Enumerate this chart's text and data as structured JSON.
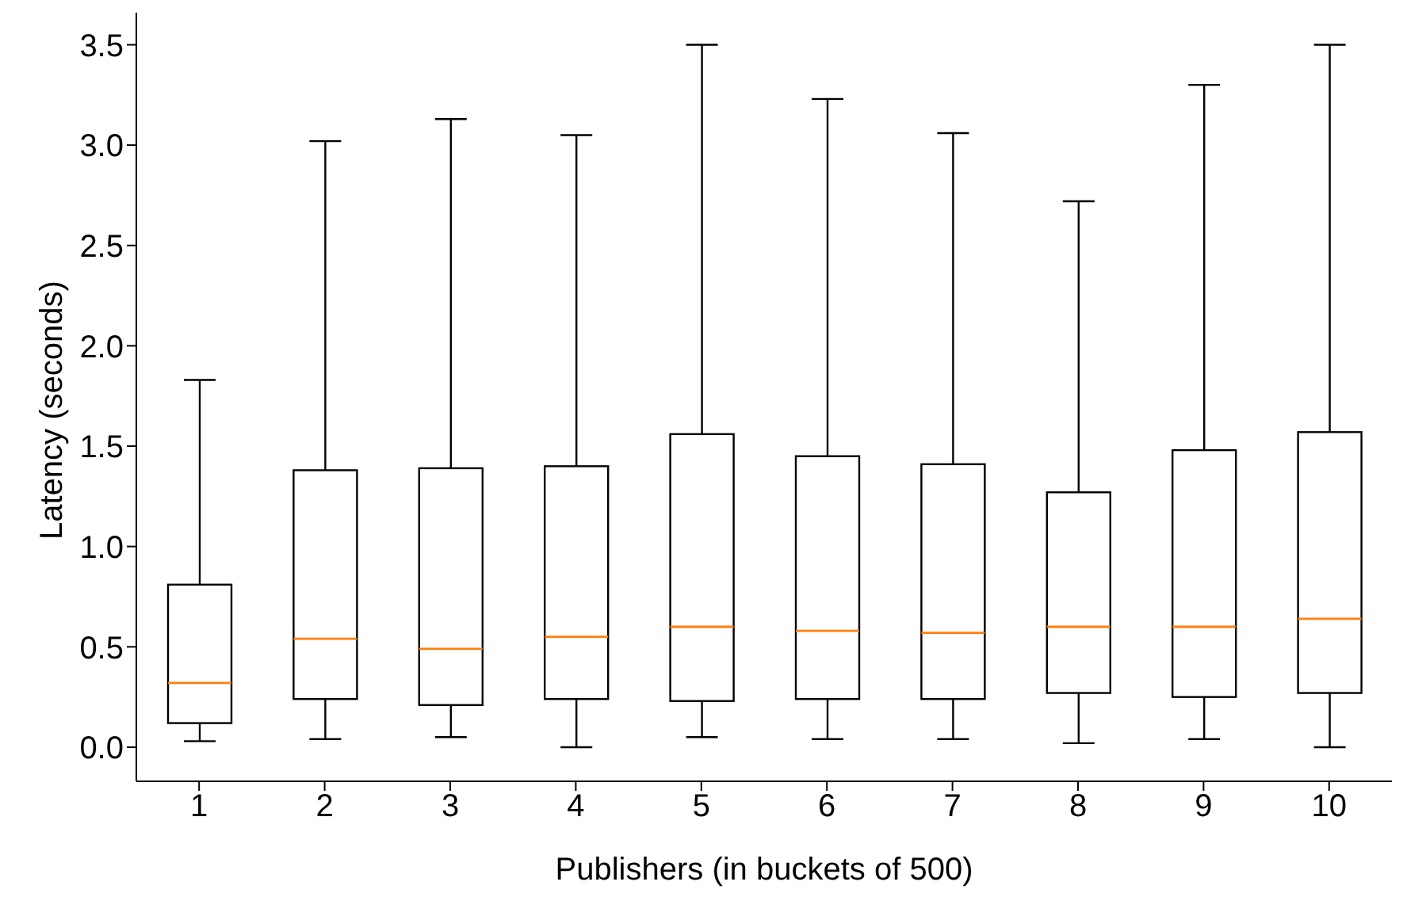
{
  "chart_data": {
    "type": "box",
    "xlabel": "Publishers (in buckets of 500)",
    "ylabel": "Latency (seconds)",
    "color": "#000000",
    "categories": [
      "1",
      "2",
      "3",
      "4",
      "5",
      "6",
      "7",
      "8",
      "9",
      "10"
    ],
    "boxes": [
      {
        "low": 0.03,
        "q1": 0.12,
        "median": 0.32,
        "q3": 0.81,
        "high": 1.83
      },
      {
        "low": 0.04,
        "q1": 0.24,
        "median": 0.54,
        "q3": 1.38,
        "high": 3.02
      },
      {
        "low": 0.05,
        "q1": 0.21,
        "median": 0.49,
        "q3": 1.39,
        "high": 3.13
      },
      {
        "low": 0.0,
        "q1": 0.24,
        "median": 0.55,
        "q3": 1.4,
        "high": 3.05
      },
      {
        "low": 0.05,
        "q1": 0.23,
        "median": 0.6,
        "q3": 1.56,
        "high": 3.5
      },
      {
        "low": 0.04,
        "q1": 0.24,
        "median": 0.58,
        "q3": 1.45,
        "high": 3.23
      },
      {
        "low": 0.04,
        "q1": 0.24,
        "median": 0.57,
        "q3": 1.41,
        "high": 3.06
      },
      {
        "low": 0.02,
        "q1": 0.27,
        "median": 0.6,
        "q3": 1.27,
        "high": 2.72
      },
      {
        "low": 0.04,
        "q1": 0.25,
        "median": 0.6,
        "q3": 1.48,
        "high": 3.3
      },
      {
        "low": 0.0,
        "q1": 0.27,
        "median": 0.64,
        "q3": 1.57,
        "high": 3.5
      }
    ],
    "ylim": [
      -0.17,
      3.66
    ],
    "yticks": [
      {
        "value": 0,
        "label": "0.0"
      },
      {
        "value": 0.5,
        "label": "0.5"
      },
      {
        "value": 1,
        "label": "1.0"
      },
      {
        "value": 1.5,
        "label": "1.5"
      },
      {
        "value": 2,
        "label": "2.0"
      },
      {
        "value": 2.5,
        "label": "2.5"
      },
      {
        "value": 3,
        "label": "3.0"
      },
      {
        "value": 3.5,
        "label": "3.5"
      }
    ],
    "grid": false,
    "legend": false
  }
}
